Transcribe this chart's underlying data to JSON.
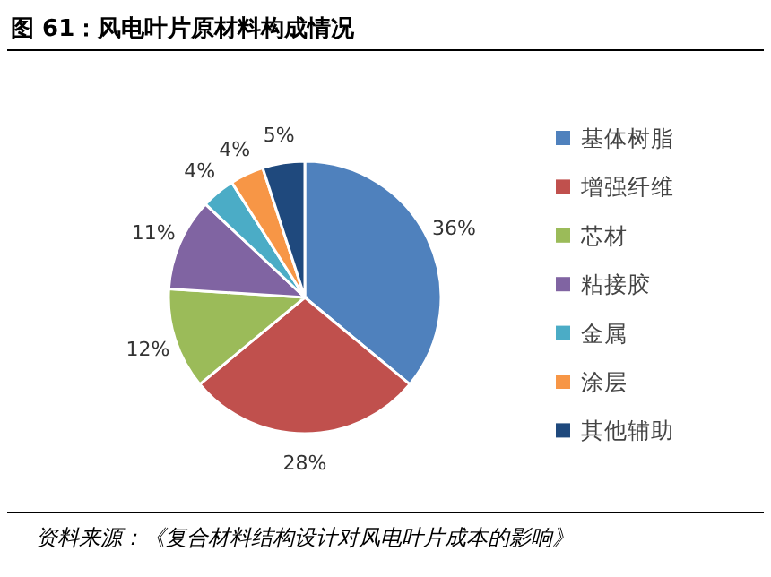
{
  "chart_data": {
    "type": "pie",
    "title": "图 61：风电叶片原材料构成情况",
    "categories": [
      "基体树脂",
      "增强纤维",
      "芯材",
      "粘接胶",
      "金属",
      "涂层",
      "其他辅助"
    ],
    "values": [
      36,
      28,
      12,
      11,
      4,
      4,
      5
    ],
    "value_labels": [
      "36%",
      "28%",
      "12%",
      "11%",
      "4%",
      "4%",
      "5%"
    ],
    "colors": [
      "#4f81bd",
      "#c0504d",
      "#9bbb59",
      "#8064a2",
      "#4bacc6",
      "#f79646",
      "#1f497d"
    ],
    "legend": "right",
    "annotations": [
      "资料来源：《复合材料结构设计对风电叶片成本的影响》"
    ]
  }
}
